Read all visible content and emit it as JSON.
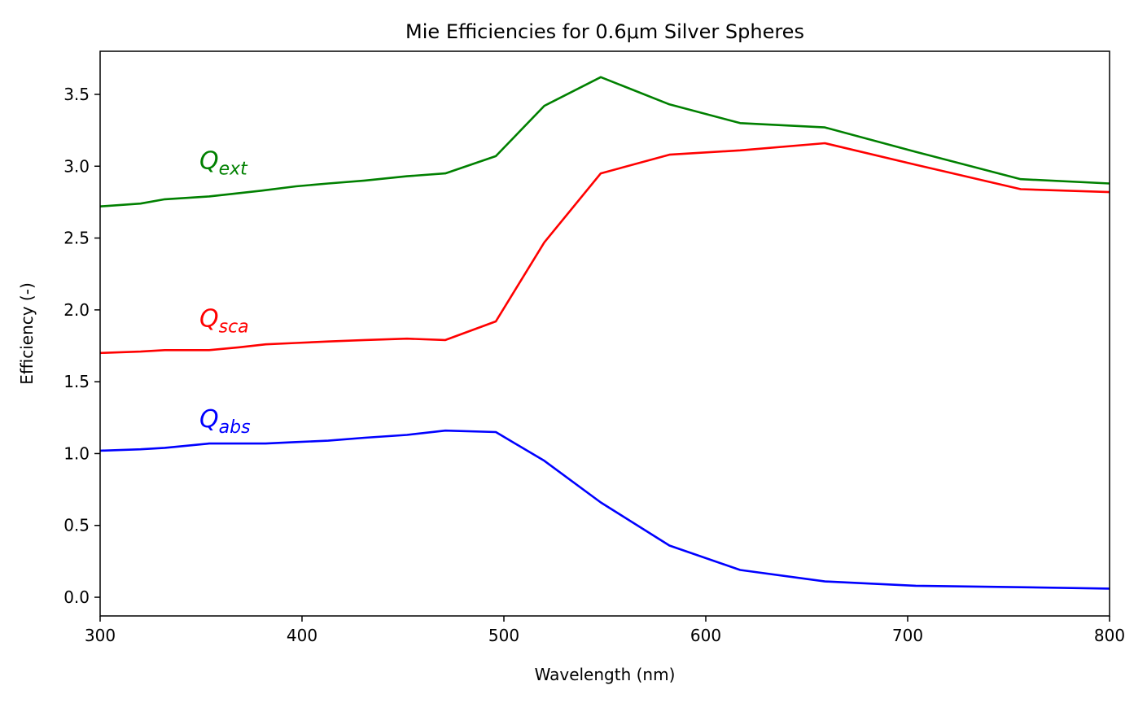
{
  "chart_data": {
    "type": "line",
    "title": "Mie Efficiencies for 0.6μm Silver Spheres",
    "xlabel": "Wavelength (nm)",
    "ylabel": "Efficiency (-)",
    "xlim": [
      300,
      800
    ],
    "ylim": [
      -0.13,
      3.8
    ],
    "xticks": [
      300,
      400,
      500,
      600,
      700,
      800
    ],
    "xtick_labels": [
      "300",
      "400",
      "500",
      "600",
      "700",
      "800"
    ],
    "yticks": [
      0.0,
      0.5,
      1.0,
      1.5,
      2.0,
      2.5,
      3.0,
      3.5
    ],
    "ytick_labels": [
      "0.0",
      "0.5",
      "1.0",
      "1.5",
      "2.0",
      "2.5",
      "3.0",
      "3.5"
    ],
    "grid": false,
    "series": [
      {
        "name": "Q_ext",
        "color": "#008000",
        "x": [
          300,
          320,
          332,
          354,
          380,
          397,
          413,
          431,
          452,
          471,
          496,
          520,
          548,
          582,
          617,
          659,
          704,
          756,
          800
        ],
        "y": [
          2.72,
          2.74,
          2.77,
          2.79,
          2.83,
          2.86,
          2.88,
          2.9,
          2.93,
          2.95,
          3.07,
          3.42,
          3.62,
          3.43,
          3.3,
          3.27,
          3.1,
          2.91,
          2.88
        ]
      },
      {
        "name": "Q_sca",
        "color": "#ff0000",
        "x": [
          300,
          320,
          332,
          354,
          369,
          382,
          397,
          413,
          431,
          452,
          471,
          496,
          520,
          548,
          582,
          617,
          659,
          704,
          756,
          800
        ],
        "y": [
          1.7,
          1.71,
          1.72,
          1.72,
          1.74,
          1.76,
          1.77,
          1.78,
          1.79,
          1.8,
          1.79,
          1.92,
          2.47,
          2.95,
          3.08,
          3.11,
          3.16,
          3.01,
          2.84,
          2.82
        ]
      },
      {
        "name": "Q_abs",
        "color": "#0000ff",
        "x": [
          300,
          320,
          332,
          354,
          369,
          382,
          397,
          413,
          431,
          452,
          471,
          496,
          520,
          548,
          582,
          617,
          659,
          704,
          756,
          800
        ],
        "y": [
          1.02,
          1.03,
          1.04,
          1.07,
          1.07,
          1.07,
          1.08,
          1.09,
          1.11,
          1.13,
          1.16,
          1.15,
          0.95,
          0.66,
          0.36,
          0.19,
          0.11,
          0.08,
          0.07,
          0.06
        ]
      }
    ],
    "annotations": [
      {
        "base": "Q",
        "sub": "ext",
        "x": 350,
        "y": 3.0,
        "color": "#008000"
      },
      {
        "base": "Q",
        "sub": "sca",
        "x": 350,
        "y": 1.9,
        "color": "#ff0000"
      },
      {
        "base": "Q",
        "sub": "abs",
        "x": 350,
        "y": 1.2,
        "color": "#0000ff"
      }
    ]
  }
}
